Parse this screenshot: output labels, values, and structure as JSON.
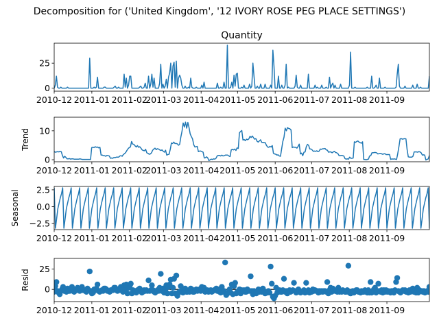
{
  "figure": {
    "suptitle": "Decomposition for ('United Kingdom', '12 IVORY ROSE PEG PLACE SETTINGS')"
  },
  "chart_data": [
    {
      "type": "line",
      "title": "Quantity",
      "ylabel": "",
      "ylim": [
        -3,
        45
      ],
      "yticks": [
        0,
        25
      ],
      "xticks": [
        "2010-12",
        "2011-01",
        "2011-02",
        "2011-03",
        "2011-04",
        "2011-05",
        "2011-06",
        "2011-07",
        "2011-08",
        "2011-09"
      ],
      "x_start": "2010-12-01",
      "x_end": "2011-10-06",
      "series": [
        {
          "values": [
            0,
            3,
            12,
            1,
            0,
            0,
            1,
            0,
            0,
            0,
            0,
            0,
            1,
            0,
            0,
            0,
            0,
            0,
            0,
            0,
            0,
            0,
            0,
            0,
            0,
            0,
            0,
            0,
            0,
            0,
            0,
            0,
            30,
            0,
            0,
            0,
            1,
            0,
            1,
            11,
            0,
            0,
            0,
            0,
            0,
            1,
            1,
            0,
            0,
            0,
            0,
            0,
            0,
            0,
            1,
            2,
            0,
            0,
            1,
            0,
            0,
            0,
            0,
            14,
            1,
            10,
            0,
            3,
            12,
            12,
            0,
            0,
            0,
            0,
            0,
            0,
            0,
            1,
            2,
            0,
            0,
            1,
            5,
            0,
            0,
            12,
            0,
            4,
            14,
            1,
            10,
            0,
            0,
            0,
            0,
            5,
            24,
            0,
            4,
            0,
            2,
            9,
            0,
            11,
            15,
            25,
            0,
            22,
            26,
            1,
            27,
            0,
            10,
            13,
            10,
            3,
            0,
            0,
            2,
            0,
            0,
            1,
            0,
            10,
            1,
            0,
            0,
            0,
            1,
            0,
            0,
            0,
            0,
            3,
            0,
            6,
            0,
            0,
            0,
            0,
            0,
            0,
            0,
            0,
            0,
            0,
            0,
            5,
            0,
            0,
            1,
            0,
            0,
            6,
            0,
            0,
            43,
            0,
            0,
            1,
            6,
            0,
            13,
            2,
            14,
            15,
            0,
            0,
            0,
            1,
            0,
            3,
            0,
            0,
            0,
            0,
            4,
            0,
            2,
            25,
            12,
            0,
            0,
            2,
            0,
            0,
            4,
            0,
            0,
            0,
            4,
            0,
            0,
            0,
            0,
            3,
            0,
            38,
            22,
            0,
            0,
            0,
            12,
            0,
            0,
            3,
            0,
            0,
            3,
            24,
            0,
            1,
            0,
            0,
            0,
            0,
            0,
            2,
            13,
            1,
            0,
            0,
            3,
            0,
            0,
            0,
            0,
            0,
            0,
            14,
            0,
            0,
            0,
            0,
            0,
            3,
            0,
            1,
            0,
            0,
            0,
            3,
            0,
            0,
            0,
            1,
            0,
            0,
            11,
            0,
            3,
            5,
            0,
            3,
            0,
            0,
            0,
            0,
            4,
            0,
            0,
            0,
            0,
            0,
            0,
            0,
            3,
            36,
            0,
            0,
            0,
            1,
            0,
            0,
            0,
            0,
            0,
            0,
            0,
            0,
            0,
            0,
            1,
            0,
            0,
            0,
            12,
            0,
            0,
            1,
            3,
            0,
            0,
            10,
            0,
            0,
            0,
            0,
            1,
            0,
            0,
            0,
            0,
            0,
            0,
            0,
            0,
            0,
            1,
            14,
            24,
            2,
            0,
            0,
            0,
            0,
            2,
            0,
            0,
            0,
            0,
            0,
            0,
            3,
            0,
            0,
            0,
            4,
            0,
            0,
            1,
            0,
            0,
            0,
            0,
            0,
            0,
            0,
            12
          ]
        }
      ]
    },
    {
      "type": "line",
      "title": "",
      "ylabel": "Trend",
      "ylim": [
        -0.7,
        14.7
      ],
      "yticks": [
        0,
        10
      ],
      "xticks": [
        "2010-12",
        "2011-01",
        "2011-02",
        "2011-03",
        "2011-04",
        "2011-05",
        "2011-06",
        "2011-07",
        "2011-08",
        "2011-09"
      ],
      "x_start": "2010-12-01",
      "x_end": "2011-10-06",
      "series": [
        {
          "values": [
            2.8,
            2.6,
            2.7,
            2.8,
            2.7,
            2.9,
            2.8,
            1.5,
            0.6,
            1.2,
            0.8,
            0.3,
            0.3,
            0.4,
            0.2,
            0.3,
            0.3,
            0.2,
            0.2,
            0.2,
            0.2,
            0.2,
            0.3,
            0.2,
            0.1,
            0.1,
            0.1,
            0.1,
            0.1,
            0.1,
            0.1,
            0.1,
            4.2,
            4.3,
            4.2,
            4.5,
            4.3,
            4.4,
            4.1,
            4.3,
            1.6,
            1.6,
            1.4,
            1.4,
            1.2,
            1.5,
            1.4,
            1.3,
            0.5,
            0.6,
            0.5,
            0.8,
            0.7,
            0.9,
            0.9,
            0.9,
            1.3,
            1.4,
            1.2,
            1.8,
            2.1,
            2.5,
            3.2,
            3.8,
            4.2,
            4.4,
            6.3,
            5.4,
            5.3,
            4.8,
            4.4,
            4.9,
            4.3,
            4.5,
            4.0,
            3.4,
            3.2,
            3.1,
            3.6,
            2.4,
            2.2,
            1.9,
            2.0,
            2.4,
            3.3,
            3.7,
            4.0,
            3.5,
            3.8,
            3.7,
            3.4,
            3.2,
            3.4,
            2.9,
            2.6,
            3.3,
            1.6,
            1.8,
            1.9,
            3.6,
            5.8,
            5.6,
            6.1,
            5.6,
            5.6,
            5.5,
            5.0,
            5.3,
            7.8,
            9.8,
            12.7,
            11.3,
            13.0,
            10.9,
            12.9,
            11.1,
            8.9,
            8.0,
            7.2,
            5.2,
            4.4,
            4.5,
            4.6,
            2.8,
            3.0,
            3.0,
            2.8,
            2.6,
            0.6,
            0.7,
            1.0,
            0.6,
            -0.3,
            0.0,
            0.2,
            0.1,
            0.3,
            0.2,
            0.5,
            1.3,
            1.5,
            1.5,
            1.3,
            1.6,
            1.3,
            1.4,
            1.6,
            1.6,
            1.6,
            1.3,
            1.1,
            3.4,
            3.6,
            3.4,
            3.7,
            3.2,
            4.1,
            3.9,
            9.3,
            9.8,
            10.1,
            6.8,
            7.0,
            6.6,
            7.1,
            6.9,
            7.2,
            8.1,
            7.7,
            8.2,
            7.6,
            7.1,
            7.3,
            6.4,
            6.1,
            6.5,
            6.9,
            6.0,
            6.0,
            5.9,
            5.9,
            5.0,
            4.4,
            4.3,
            4.6,
            4.4,
            4.9,
            2.2,
            2.0,
            1.9,
            1.6,
            1.7,
            1.3,
            1.2,
            3.8,
            6.3,
            7.8,
            10.9,
            10.0,
            11.1,
            10.8,
            10.7,
            10.3,
            4.2,
            4.4,
            4.3,
            4.3,
            4.0,
            4.6,
            5.4,
            2.0,
            2.3,
            1.4,
            2.6,
            2.7,
            4.5,
            5.3,
            5.0,
            3.7,
            3.7,
            3.4,
            2.9,
            3.0,
            2.9,
            3.1,
            2.8,
            3.0,
            3.7,
            3.6,
            3.8,
            3.8,
            3.9,
            3.4,
            3.3,
            2.6,
            2.7,
            2.7,
            2.4,
            2.7,
            2.9,
            2.5,
            2.4,
            2.1,
            1.4,
            1.4,
            1.5,
            1.4,
            1.3,
            0.4,
            0.2,
            0.3,
            0.2,
            0.9,
            0.5,
            0.5,
            0.6,
            6.2,
            6.0,
            6.3,
            6.5,
            6.1,
            5.9,
            5.7,
            6.2,
            0.1,
            0.1,
            0.0,
            0.1,
            0.2,
            1.3,
            1.4,
            2.4,
            2.4,
            2.5,
            2.5,
            2.4,
            2.0,
            2.1,
            2.2,
            2.1,
            1.9,
            2.0,
            2.1,
            1.8,
            1.8,
            1.8,
            1.8,
            0.1,
            0.3,
            0.2,
            0.3,
            0.2,
            0.1,
            2.1,
            4.5,
            7.2,
            7.3,
            7.1,
            7.2,
            7.3,
            7.2,
            3.5,
            1.0,
            0.9,
            0.9,
            0.9,
            1.2,
            2.7,
            2.7,
            2.7,
            2.6,
            2.8,
            2.7,
            2.4,
            1.6,
            1.7,
            1.6,
            -0.1,
            0.1,
            0.3,
            1.5
          ]
        }
      ]
    },
    {
      "type": "line",
      "title": "",
      "ylabel": "Seasonal",
      "ylim": [
        -3.4,
        3.0
      ],
      "yticks": [
        2.5,
        0.0,
        -2.5
      ],
      "ytick_labels": [
        "2.5",
        "0.0",
        "−2.5"
      ],
      "xticks": [
        "2010-12",
        "2011-01",
        "2011-02",
        "2011-03",
        "2011-04",
        "2011-05",
        "2011-06",
        "2011-07",
        "2011-08",
        "2011-09"
      ],
      "x_start": "2010-12-01",
      "x_end": "2011-10-06",
      "period": 7,
      "pattern": [
        2.8,
        -3.2,
        -1.8,
        -0.3,
        0.5,
        1.3,
        1.9
      ],
      "total_points": 310
    },
    {
      "type": "scatter",
      "title": "",
      "ylabel": "Resid",
      "ylim": [
        -15,
        38
      ],
      "yticks": [
        25,
        0
      ],
      "xticks": [
        "2010-12",
        "2011-01",
        "2011-02",
        "2011-03",
        "2011-04",
        "2011-05",
        "2011-06",
        "2011-07",
        "2011-08",
        "2011-09"
      ],
      "x_start": "2010-12-01",
      "x_end": "2011-10-06",
      "series": [
        {
          "values": [
            -3,
            4,
            9,
            -2,
            -4,
            -6,
            -2,
            0,
            3,
            -2,
            -1,
            -3,
            1,
            -2,
            -2,
            -1,
            3,
            -2,
            -3,
            -1,
            -1,
            2,
            -1,
            -2,
            1,
            3,
            -1,
            -1,
            -2,
            -3,
            1,
            -1,
            22,
            -2,
            -5,
            -4,
            0,
            -1,
            1,
            6,
            -2,
            -3,
            -2,
            -1,
            -2,
            1,
            1,
            0,
            -2,
            -2,
            -3,
            -1,
            -1,
            -1,
            2,
            2,
            0,
            -2,
            -1,
            -1,
            3,
            -1,
            -3,
            5,
            -1,
            6,
            -5,
            2,
            3,
            7,
            -5,
            -1,
            -3,
            -2,
            -4,
            -1,
            -2,
            1,
            -1,
            -4,
            -3,
            -1,
            -2,
            -1,
            -2,
            11,
            -2,
            -1,
            5,
            -1,
            -3,
            -4,
            -2,
            -1,
            -2,
            2,
            19,
            -2,
            1,
            -4,
            -1,
            5,
            -5,
            3,
            6,
            12,
            -5,
            2,
            13,
            -5,
            17,
            -8,
            -4,
            -3,
            4,
            -2,
            -4,
            -2,
            1,
            -3,
            -3,
            -2,
            -3,
            1,
            0,
            -3,
            -3,
            -2,
            0,
            -2,
            -1,
            0,
            -2,
            3,
            -1,
            2,
            -3,
            -2,
            -1,
            -3,
            -2,
            -1,
            -3,
            -2,
            -1,
            -1,
            1,
            -2,
            0,
            -3,
            -4,
            3,
            -3,
            -2,
            33,
            -7,
            -5,
            -4,
            0,
            -4,
            6,
            -6,
            4,
            8,
            -5,
            -3,
            -2,
            0,
            -5,
            -1,
            -2,
            -1,
            -3,
            -3,
            0,
            -2,
            -2,
            16,
            -2,
            -6,
            -2,
            -3,
            -5,
            -3,
            0,
            -3,
            -2,
            -3,
            1,
            -3,
            -5,
            -3,
            -4,
            -2,
            -4,
            28,
            7,
            -9,
            -11,
            -8,
            2,
            -4,
            -2,
            -1,
            -3,
            -3,
            -1,
            13,
            -3,
            -2,
            -5,
            -3,
            -1,
            -3,
            -2,
            -1,
            8,
            -2,
            -4,
            -3,
            0,
            -2,
            -4,
            -3,
            -2,
            -1,
            -4,
            8,
            -3,
            -1,
            -4,
            -2,
            -3,
            0,
            -2,
            -1,
            -2,
            -2,
            -4,
            -2,
            -3,
            -2,
            -3,
            -2,
            -2,
            -3,
            9,
            -5,
            -1,
            2,
            -3,
            1,
            -1,
            -2,
            -2,
            -3,
            2,
            -3,
            -2,
            -3,
            -1,
            -2,
            -3,
            -3,
            -1,
            29,
            -4,
            -5,
            -3,
            -2,
            -4,
            -2,
            -1,
            -1,
            -3,
            -3,
            -4,
            -2,
            -3,
            -3,
            -1,
            -2,
            -4,
            -1,
            -4,
            9,
            -4,
            -3,
            0,
            2,
            -4,
            -2,
            7,
            -2,
            -3,
            -1,
            -4,
            -1,
            -3,
            -1,
            -3,
            -2,
            -3,
            -4,
            -2,
            -2,
            -4,
            -1,
            9,
            14,
            -2,
            -3,
            -4,
            -2,
            -1,
            -2,
            -1,
            -3,
            -2,
            -4,
            -1,
            -3,
            -2,
            1,
            -3,
            -2,
            -4,
            2,
            -4,
            -1,
            -2,
            -2,
            -3,
            -2,
            -4,
            -3,
            -2,
            -3,
            3
          ]
        }
      ]
    }
  ]
}
